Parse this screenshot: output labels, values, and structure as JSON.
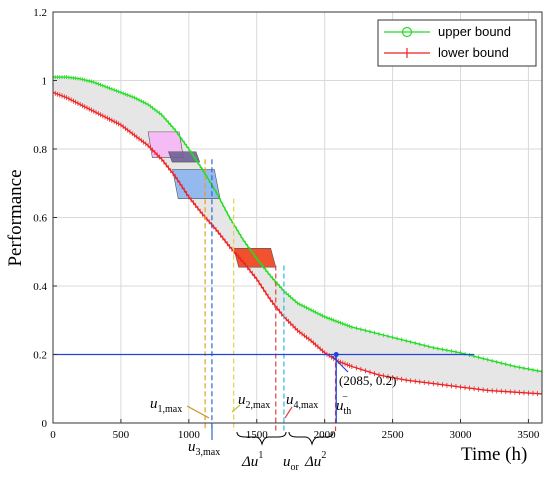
{
  "chart_data": {
    "type": "line",
    "xlabel": "Time (h)",
    "ylabel": "Performance",
    "xlim": [
      0,
      3600
    ],
    "ylim": [
      0,
      1.2
    ],
    "xticks": [
      0,
      500,
      1000,
      1500,
      2000,
      2500,
      3000,
      3500
    ],
    "yticks": [
      0,
      0.2,
      0.4,
      0.6,
      0.8,
      1,
      1.2
    ],
    "xtick_labels": [
      "0",
      "500",
      "1000",
      "1500",
      "2000",
      "2500",
      "3000",
      "3500"
    ],
    "ytick_labels": [
      "0",
      "0.2",
      "0.4",
      "0.6",
      "0.8",
      "1",
      "1.2"
    ],
    "grid": true,
    "legend_position": "top-right",
    "series": [
      {
        "name": "upper bound",
        "color": "#22dd22",
        "marker": "circle",
        "x": [
          0,
          100,
          200,
          300,
          400,
          500,
          600,
          700,
          800,
          900,
          1000,
          1100,
          1200,
          1300,
          1400,
          1500,
          1600,
          1700,
          1800,
          1900,
          2000,
          2100,
          2200,
          2400,
          2600,
          2800,
          3000,
          3200,
          3400,
          3600
        ],
        "y": [
          1.01,
          1.01,
          1.005,
          0.995,
          0.98,
          0.965,
          0.95,
          0.93,
          0.9,
          0.855,
          0.8,
          0.74,
          0.675,
          0.6,
          0.535,
          0.48,
          0.43,
          0.385,
          0.35,
          0.33,
          0.31,
          0.295,
          0.28,
          0.26,
          0.24,
          0.22,
          0.205,
          0.185,
          0.165,
          0.15
        ]
      },
      {
        "name": "lower bound",
        "color": "#ee2222",
        "marker": "plus",
        "x": [
          0,
          100,
          200,
          300,
          400,
          500,
          600,
          700,
          800,
          900,
          1000,
          1100,
          1200,
          1300,
          1400,
          1500,
          1600,
          1700,
          1800,
          1900,
          2000,
          2100,
          2200,
          2400,
          2600,
          2800,
          3000,
          3200,
          3400,
          3600
        ],
        "y": [
          0.965,
          0.95,
          0.93,
          0.91,
          0.89,
          0.87,
          0.84,
          0.81,
          0.77,
          0.72,
          0.66,
          0.61,
          0.565,
          0.515,
          0.47,
          0.42,
          0.36,
          0.31,
          0.27,
          0.24,
          0.205,
          0.18,
          0.165,
          0.14,
          0.125,
          0.115,
          0.105,
          0.095,
          0.09,
          0.085
        ]
      }
    ],
    "threshold": {
      "y": 0.2,
      "x_from": 0,
      "x_to": 3100,
      "color": "#2244dd"
    },
    "point": {
      "x": 2085,
      "y": 0.2,
      "label": "(2085, 0.2)"
    },
    "regions": [
      {
        "name": "pink",
        "color": "#f6b6f6",
        "x0": 700,
        "x1": 960,
        "y0": 0.775,
        "y1": 0.85
      },
      {
        "name": "dark",
        "color": "#6e6096",
        "x0": 850,
        "x1": 1080,
        "y0": 0.762,
        "y1": 0.792
      },
      {
        "name": "blue",
        "color": "#8ab4f0",
        "x0": 880,
        "x1": 1230,
        "y0": 0.655,
        "y1": 0.74
      },
      {
        "name": "red",
        "color": "#f0401a",
        "x0": 1330,
        "x1": 1640,
        "y0": 0.455,
        "y1": 0.51
      }
    ],
    "vlines": [
      {
        "x": 1120,
        "y_top": 0.77,
        "color": "#e0a020"
      },
      {
        "x": 1170,
        "y_top": 0.77,
        "color": "#2a6ad0"
      },
      {
        "x": 1330,
        "y_top": 0.655,
        "color": "#e8d040"
      },
      {
        "x": 1640,
        "y_top": 0.46,
        "color": "#e04040"
      },
      {
        "x": 1700,
        "y_top": 0.46,
        "color": "#30b8e0"
      },
      {
        "x": 2080,
        "y_top": 0.2,
        "color": "#e04040"
      }
    ],
    "annotations": {
      "u1": {
        "main": "u",
        "sub": "1,max"
      },
      "u2": {
        "main": "u",
        "sub": "2,max"
      },
      "u3": {
        "main": "u",
        "sub": "3,max"
      },
      "u4": {
        "main": "u",
        "sub": "4,max"
      },
      "uth": {
        "main": "u",
        "sub": "th",
        "sup": "−"
      },
      "du1": {
        "main": "Δu",
        "sup": "1"
      },
      "uor": {
        "main": "u",
        "sub": "or"
      },
      "du2": {
        "main": "Δu",
        "sup": "2"
      }
    }
  }
}
